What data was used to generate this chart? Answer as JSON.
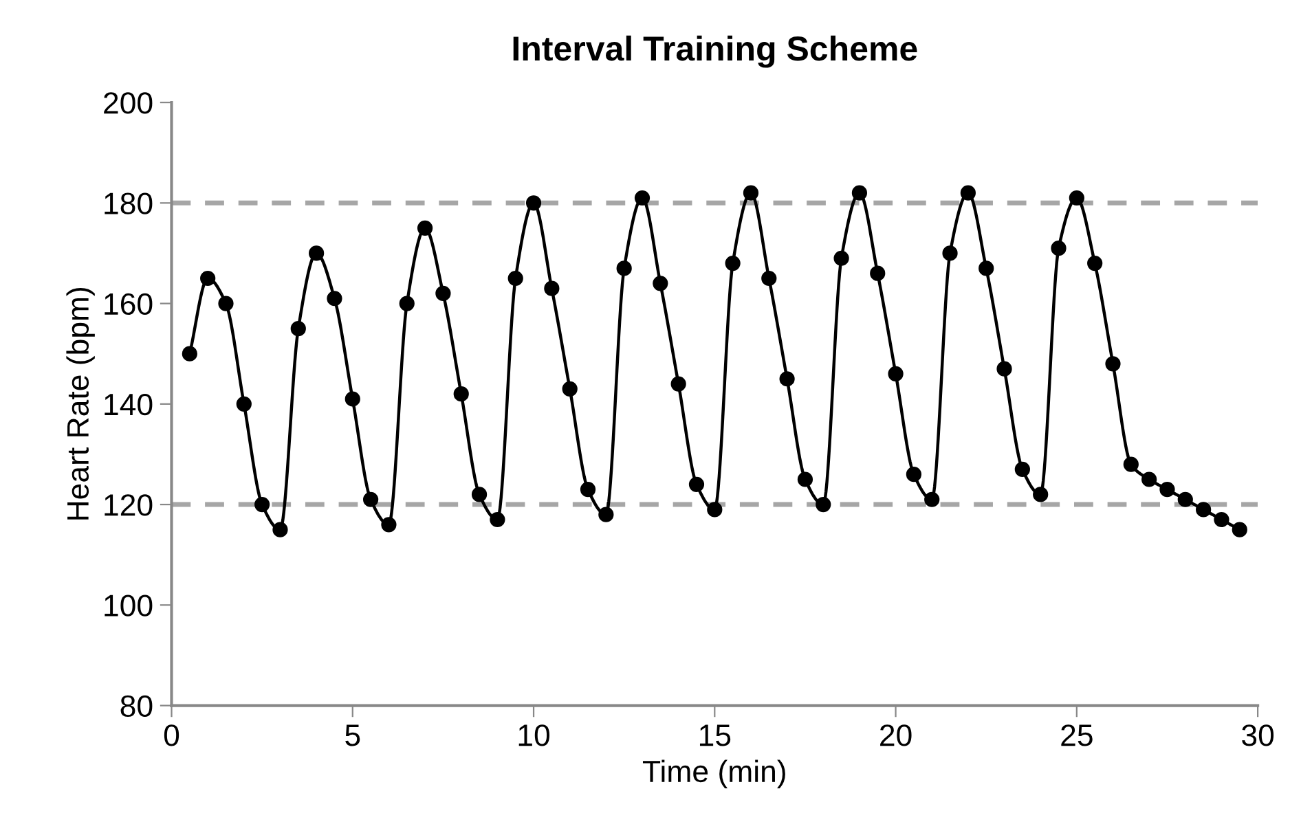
{
  "chart_data": {
    "type": "line",
    "title": "Interval Training Scheme",
    "xlabel": "Time (min)",
    "ylabel": "Heart Rate (bpm)",
    "x": [
      0.5,
      1,
      1.5,
      2,
      2.5,
      3,
      3.5,
      4,
      4.5,
      5,
      5.5,
      6,
      6.5,
      7,
      7.5,
      8,
      8.5,
      9,
      9.5,
      10,
      10.5,
      11,
      11.5,
      12,
      12.5,
      13,
      13.5,
      14,
      14.5,
      15,
      15.5,
      16,
      16.5,
      17,
      17.5,
      18,
      18.5,
      19,
      19.5,
      20,
      20.5,
      21,
      21.5,
      22,
      22.5,
      23,
      23.5,
      24,
      24.5,
      25,
      25.5,
      26,
      26.5,
      27,
      27.5,
      28,
      28.5,
      29,
      29.5
    ],
    "series": [
      {
        "color": "#000000",
        "values": [
          150,
          165,
          160,
          140,
          120,
          115,
          155,
          170,
          161,
          141,
          121,
          116,
          160,
          175,
          162,
          142,
          122,
          117,
          165,
          180,
          163,
          143,
          123,
          118,
          167,
          181,
          164,
          144,
          124,
          119,
          168,
          182,
          165,
          145,
          125,
          120,
          169,
          182,
          166,
          146,
          126,
          121,
          170,
          182,
          167,
          147,
          127,
          122,
          171,
          181,
          168,
          148,
          128,
          125,
          123,
          121,
          119,
          117,
          115
        ]
      }
    ],
    "xlim": [
      0,
      30
    ],
    "xticks": [
      0,
      5,
      10,
      15,
      20,
      25,
      30
    ],
    "ylim": [
      80,
      200
    ],
    "yticks": [
      80,
      100,
      120,
      140,
      160,
      180,
      200
    ],
    "marker": "circle",
    "line_style": "solid",
    "grid": false,
    "legend": false,
    "ref_lines": [
      {
        "axis": "y",
        "value": 120,
        "color": "#a6a6a6",
        "line_style": "dashed"
      },
      {
        "axis": "y",
        "value": 180,
        "color": "#a6a6a6",
        "line_style": "dashed"
      }
    ]
  }
}
